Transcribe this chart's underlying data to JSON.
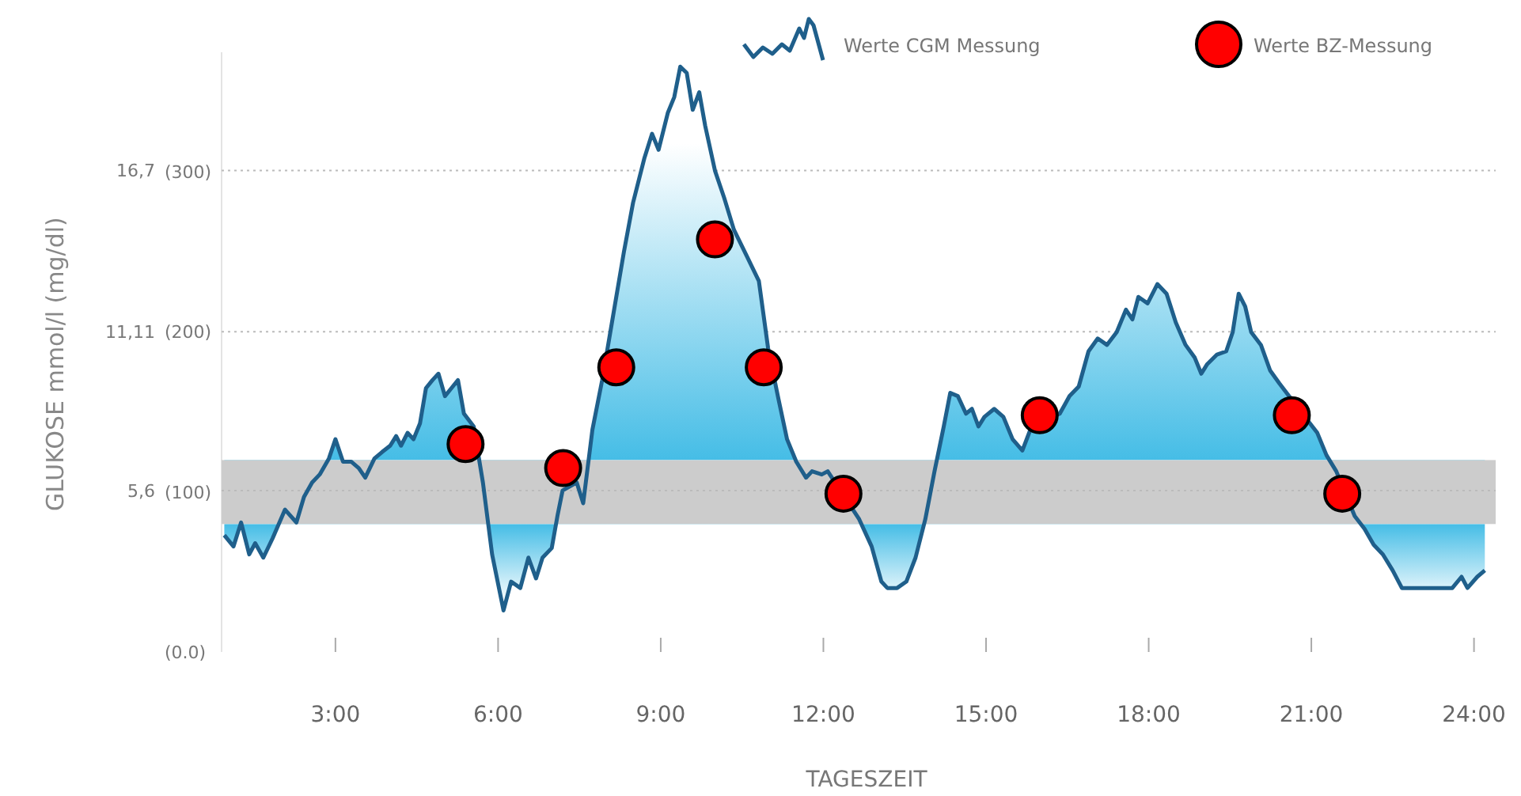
{
  "chart_data": {
    "type": "line",
    "xlabel": "TAGESZEIT",
    "ylabel": "GLUKOSE mmol/l (mg/dl)",
    "xlim": [
      0.9,
      24.4
    ],
    "ylim": [
      0,
      20.8
    ],
    "y2lim": [
      0,
      375
    ],
    "xticks": [
      {
        "value": 3,
        "label": "3:00"
      },
      {
        "value": 6,
        "label": "6:00"
      },
      {
        "value": 9,
        "label": "9:00"
      },
      {
        "value": 12,
        "label": "12:00"
      },
      {
        "value": 15,
        "label": "15:00"
      },
      {
        "value": 18,
        "label": "18:00"
      },
      {
        "value": 21,
        "label": "21:00"
      },
      {
        "value": 24,
        "label": "24:00"
      }
    ],
    "y2ticks": [
      {
        "value": 0,
        "label": "(0.0)"
      },
      {
        "value": 100,
        "label": "(100)"
      },
      {
        "value": 200,
        "label": "(200)"
      },
      {
        "value": 300,
        "label": "(300)"
      }
    ],
    "yticks": [
      {
        "value": 5.6,
        "label": "5,6"
      },
      {
        "value": 11.11,
        "label": "11,11"
      },
      {
        "value": 16.7,
        "label": "16,7"
      }
    ],
    "grid": "y",
    "legend": "top right",
    "bands": [
      {
        "axis": "y2",
        "from": 80,
        "to": 120,
        "color": "#cccccc"
      }
    ],
    "series": [
      {
        "name": "Werte CGM Messung",
        "type": "line",
        "axis": "y2",
        "color": "#1f5f8b",
        "marker": "none",
        "line_style": "solid",
        "x": [
          0.95,
          1.12,
          1.26,
          1.41,
          1.52,
          1.67,
          1.84,
          2.07,
          2.28,
          2.42,
          2.57,
          2.71,
          2.88,
          3.0,
          3.14,
          3.29,
          3.43,
          3.55,
          3.72,
          3.86,
          4.01,
          4.12,
          4.21,
          4.33,
          4.44,
          4.56,
          4.67,
          4.79,
          4.9,
          5.02,
          5.14,
          5.26,
          5.37,
          5.55,
          5.72,
          5.89,
          6.1,
          6.24,
          6.41,
          6.56,
          6.7,
          6.82,
          6.99,
          7.1,
          7.19,
          7.33,
          7.45,
          7.57,
          7.74,
          7.92,
          8.12,
          8.32,
          8.49,
          8.7,
          8.84,
          8.96,
          9.13,
          9.25,
          9.36,
          9.48,
          9.59,
          9.71,
          9.82,
          10.0,
          10.17,
          10.35,
          10.58,
          10.81,
          10.98,
          11.16,
          11.33,
          11.5,
          11.68,
          11.79,
          11.97,
          12.08,
          12.26,
          12.46,
          12.66,
          12.89,
          13.07,
          13.18,
          13.36,
          13.53,
          13.7,
          13.88,
          14.05,
          14.22,
          14.34,
          14.48,
          14.63,
          14.74,
          14.86,
          14.97,
          15.15,
          15.32,
          15.49,
          15.67,
          15.84,
          16.02,
          16.19,
          16.36,
          16.54,
          16.71,
          16.89,
          17.06,
          17.23,
          17.41,
          17.58,
          17.7,
          17.81,
          17.98,
          18.16,
          18.33,
          18.5,
          18.68,
          18.85,
          18.97,
          19.08,
          19.26,
          19.43,
          19.55,
          19.66,
          19.78,
          19.89,
          20.07,
          20.24,
          20.41,
          20.64,
          20.88,
          21.11,
          21.28,
          21.46,
          21.63,
          21.8,
          21.98,
          22.15,
          22.32,
          22.5,
          22.67,
          22.85,
          23.08,
          23.37,
          23.6,
          23.77,
          23.88,
          24.06,
          24.2
        ],
        "values": [
          73,
          66,
          81,
          61,
          68,
          59,
          71,
          89,
          81,
          97,
          106,
          111,
          121,
          133,
          119,
          119,
          115,
          109,
          121,
          125,
          129,
          135,
          129,
          137,
          133,
          143,
          165,
          170,
          174,
          160,
          165,
          170,
          149,
          141,
          106,
          61,
          26,
          44,
          40,
          59,
          46,
          59,
          65,
          86,
          101,
          null,
          106,
          93,
          139,
          170,
          210,
          250,
          281,
          309,
          324,
          314,
          337,
          347,
          366,
          362,
          339,
          350,
          329,
          301,
          284,
          264,
          248,
          232,
          190,
          160,
          133,
          119,
          109,
          113,
          111,
          113,
          null,
          null,
          83,
          66,
          44,
          40,
          40,
          44,
          59,
          83,
          113,
          141,
          162,
          160,
          149,
          152,
          141,
          147,
          152,
          147,
          133,
          126,
          141,
          null,
          null,
          149,
          160,
          166,
          188,
          196,
          192,
          200,
          214,
          208,
          222,
          218,
          230,
          224,
          206,
          192,
          184,
          174,
          180,
          186,
          188,
          200,
          224,
          216,
          200,
          192,
          176,
          168,
          null,
          147,
          137,
          123,
          113,
          null,
          85,
          77,
          67,
          61,
          51,
          40,
          40,
          40,
          40,
          40,
          47,
          40,
          47,
          51
        ]
      },
      {
        "name": "Werte BZ-Messung",
        "type": "scatter",
        "axis": "y2",
        "color": "#ff0000",
        "marker": "circle",
        "x": [
          5.4,
          7.2,
          8.18,
          10.0,
          10.9,
          12.37,
          15.99,
          20.64,
          21.57
        ],
        "values": [
          130,
          115,
          178,
          258,
          178,
          99,
          148,
          148,
          99
        ]
      }
    ]
  }
}
